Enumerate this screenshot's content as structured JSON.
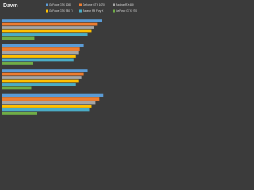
{
  "chart_data": {
    "type": "bar",
    "orientation": "horizontal",
    "title": "Dawn",
    "categories": [
      null,
      null,
      null,
      null
    ],
    "xlim": [
      0,
      150
    ],
    "series": [
      {
        "name": "GeForce GTX 1080",
        "color": "#5b9bd5",
        "values": [
          128,
          105,
          110,
          130
        ]
      },
      {
        "name": "GeForce GTX 1070",
        "color": "#ed7d31",
        "values": [
          122,
          100,
          105,
          125
        ]
      },
      {
        "name": "Radeon RX 480",
        "color": "#a5a5a5",
        "values": [
          118,
          98,
          102,
          120
        ]
      },
      {
        "name": "GeForce GTX 980 Ti",
        "color": "#ffc000",
        "values": [
          115,
          95,
          98,
          115
        ]
      },
      {
        "name": "Radeon R9 Fury X",
        "color": "#4bacc6",
        "values": [
          110,
          92,
          95,
          112
        ]
      },
      {
        "name": "GeForce GTX 970",
        "color": "#70ad47",
        "values": [
          42,
          40,
          38,
          45
        ]
      }
    ],
    "legend": "top"
  }
}
